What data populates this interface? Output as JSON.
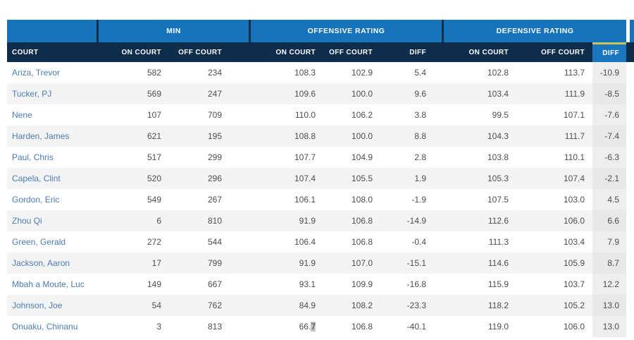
{
  "colors": {
    "group_band_blue": "#1673b9",
    "subheader_navy": "#0e2c4b",
    "sort_highlight_blue": "#1a77be",
    "sort_highlight_yellow": "#cfc25d",
    "player_link_blue": "#4a7cb1",
    "row_stripe_gray": "#f4f4f5",
    "diff_column_tint": "#eeeeef",
    "data_text_gray": "#4d4d4d"
  },
  "table": {
    "groups": {
      "player": "",
      "min": "MIN",
      "offensive": "OFFENSIVE RATING",
      "defensive": "DEFENSIVE RATING"
    },
    "columns": {
      "court": "COURT",
      "on_court": "ON COURT",
      "off_court": "OFF COURT",
      "diff": "DIFF"
    },
    "sorted_column": "defensive-diff",
    "rows": [
      {
        "player": "Ariza, Trevor",
        "values": [
          "582",
          "234",
          "108.3",
          "102.9",
          "5.4",
          "102.8",
          "113.7",
          "-10.9"
        ]
      },
      {
        "player": "Tucker, PJ",
        "values": [
          "569",
          "247",
          "109.6",
          "100.0",
          "9.6",
          "103.4",
          "111.9",
          "-8.5"
        ]
      },
      {
        "player": "Nene",
        "values": [
          "107",
          "709",
          "110.0",
          "106.2",
          "3.8",
          "99.5",
          "107.1",
          "-7.6"
        ]
      },
      {
        "player": "Harden, James",
        "values": [
          "621",
          "195",
          "108.8",
          "100.0",
          "8.8",
          "104.3",
          "111.7",
          "-7.4"
        ]
      },
      {
        "player": "Paul, Chris",
        "values": [
          "517",
          "299",
          "107.7",
          "104.9",
          "2.8",
          "103.8",
          "110.1",
          "-6.3"
        ]
      },
      {
        "player": "Capela, Clint",
        "values": [
          "520",
          "296",
          "107.4",
          "105.5",
          "1.9",
          "105.3",
          "107.4",
          "-2.1"
        ]
      },
      {
        "player": "Gordon, Eric",
        "values": [
          "549",
          "267",
          "106.1",
          "108.0",
          "-1.9",
          "107.5",
          "103.0",
          "4.5"
        ]
      },
      {
        "player": "Zhou Qi",
        "values": [
          "6",
          "810",
          "91.9",
          "106.8",
          "-14.9",
          "112.6",
          "106.0",
          "6.6"
        ]
      },
      {
        "player": "Green, Gerald",
        "values": [
          "272",
          "544",
          "106.4",
          "106.8",
          "-0.4",
          "111.3",
          "103.4",
          "7.9"
        ]
      },
      {
        "player": "Jackson, Aaron",
        "values": [
          "17",
          "799",
          "91.9",
          "107.0",
          "-15.1",
          "114.6",
          "105.9",
          "8.7"
        ]
      },
      {
        "player": "Mbah a Moute, Luc",
        "values": [
          "149",
          "667",
          "93.1",
          "109.9",
          "-16.8",
          "115.9",
          "103.7",
          "12.2"
        ]
      },
      {
        "player": "Johnson, Joe",
        "values": [
          "54",
          "762",
          "84.9",
          "108.2",
          "-23.3",
          "118.2",
          "105.2",
          "13.0"
        ]
      },
      {
        "player": "Onuaku, Chinanu",
        "values": [
          "3",
          "813",
          "66.7",
          "106.8",
          "-40.1",
          "119.0",
          "106.0",
          "13.0"
        ]
      }
    ],
    "text_selection": {
      "row_index": 12,
      "col_index": 2,
      "selected_suffix": "7"
    }
  }
}
